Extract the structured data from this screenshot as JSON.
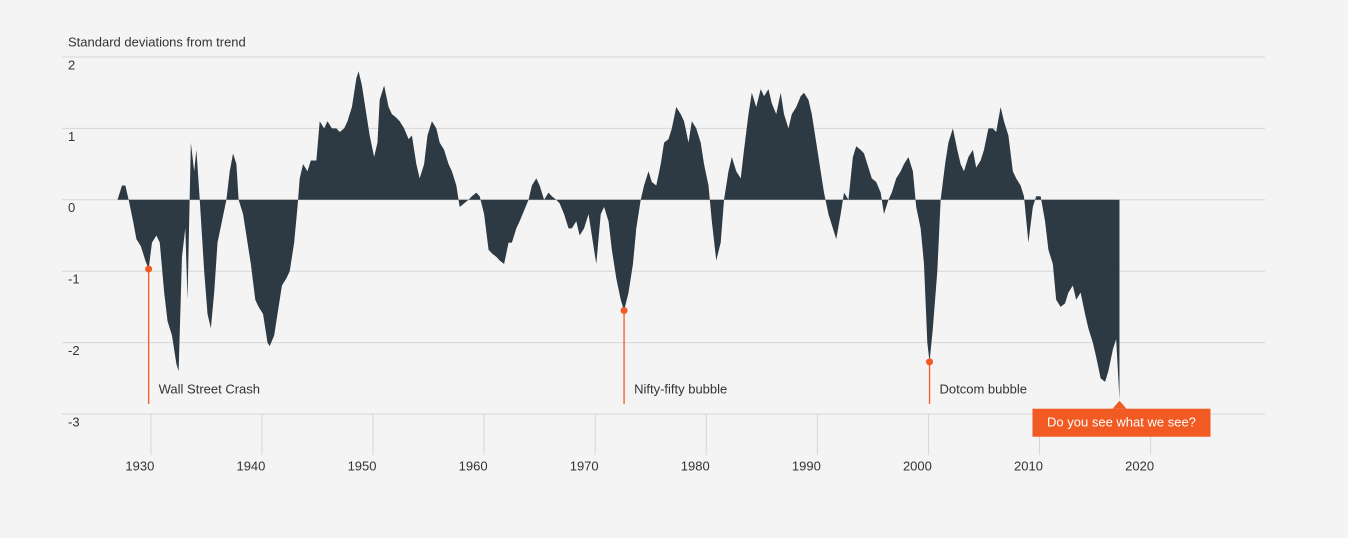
{
  "chart_data": {
    "type": "area",
    "y_label": "Standard deviations from trend",
    "color": "#2e3a43",
    "accent_color": "#f15a22",
    "xlim": [
      1922,
      2030.3
    ],
    "ylim": [
      -3,
      2
    ],
    "xticks": [
      1930,
      1940,
      1950,
      1960,
      1970,
      1980,
      1990,
      2000,
      2010,
      2020
    ],
    "yticks": [
      2,
      1,
      0,
      -1,
      -2,
      -3
    ],
    "grid": true,
    "x": [
      1927.0,
      1927.4,
      1927.7,
      1928.0,
      1928.4,
      1928.7,
      1929.1,
      1929.5,
      1929.8,
      1930.1,
      1930.5,
      1930.8,
      1931.2,
      1931.5,
      1931.9,
      1932.3,
      1932.5,
      1932.8,
      1933.1,
      1933.3,
      1933.6,
      1933.9,
      1934.1,
      1934.4,
      1934.8,
      1935.1,
      1935.4,
      1935.7,
      1936.0,
      1936.4,
      1936.8,
      1937.1,
      1937.4,
      1937.7,
      1937.9,
      1938.3,
      1938.6,
      1939.0,
      1939.4,
      1939.7,
      1940.1,
      1940.5,
      1940.7,
      1941.1,
      1941.4,
      1941.8,
      1942.2,
      1942.5,
      1942.9,
      1943.2,
      1943.4,
      1943.7,
      1944.1,
      1944.4,
      1944.9,
      1945.2,
      1945.6,
      1945.9,
      1946.3,
      1946.7,
      1947.0,
      1947.4,
      1947.7,
      1948.1,
      1948.5,
      1948.7,
      1949.0,
      1949.4,
      1949.7,
      1950.1,
      1950.4,
      1950.6,
      1951.0,
      1951.4,
      1951.7,
      1952.1,
      1952.4,
      1952.8,
      1953.2,
      1953.5,
      1953.9,
      1954.2,
      1954.6,
      1954.9,
      1955.3,
      1955.7,
      1956.0,
      1956.4,
      1956.8,
      1957.1,
      1957.5,
      1957.8,
      1958.2,
      1958.6,
      1958.9,
      1959.3,
      1959.6,
      1960.0,
      1960.4,
      1960.7,
      1961.1,
      1961.4,
      1961.8,
      1962.2,
      1962.5,
      1962.9,
      1963.2,
      1963.6,
      1964.0,
      1964.3,
      1964.7,
      1965.0,
      1965.4,
      1965.8,
      1966.1,
      1966.5,
      1966.8,
      1967.2,
      1967.6,
      1967.9,
      1968.3,
      1968.6,
      1969.0,
      1969.4,
      1969.7,
      1970.1,
      1970.5,
      1970.8,
      1971.2,
      1971.5,
      1971.9,
      1972.3,
      1972.6,
      1973.0,
      1973.4,
      1973.7,
      1974.1,
      1974.4,
      1974.8,
      1975.1,
      1975.5,
      1975.9,
      1976.2,
      1976.6,
      1976.9,
      1977.3,
      1977.7,
      1978.0,
      1978.4,
      1978.7,
      1979.1,
      1979.5,
      1979.8,
      1980.2,
      1980.5,
      1980.9,
      1981.3,
      1981.6,
      1982.0,
      1982.3,
      1982.7,
      1983.1,
      1983.4,
      1983.8,
      1984.1,
      1984.5,
      1984.9,
      1985.2,
      1985.6,
      1985.9,
      1986.3,
      1986.7,
      1987.0,
      1987.4,
      1987.7,
      1988.1,
      1988.5,
      1988.8,
      1989.2,
      1989.5,
      1989.9,
      1990.3,
      1990.6,
      1991.0,
      1991.4,
      1991.7,
      1992.1,
      1992.4,
      1992.8,
      1993.2,
      1993.5,
      1993.9,
      1994.2,
      1994.6,
      1994.9,
      1995.3,
      1995.7,
      1996.0,
      1996.4,
      1996.7,
      1997.1,
      1997.5,
      1997.8,
      1998.2,
      1998.6,
      1998.9,
      1999.3,
      1999.6,
      1999.9,
      2000.1,
      2000.4,
      2000.8,
      2001.1,
      2001.5,
      2001.8,
      2002.2,
      2002.6,
      2002.9,
      2003.2,
      2003.6,
      2004.0,
      2004.3,
      2004.7,
      2005.0,
      2005.4,
      2005.8,
      2006.1,
      2006.5,
      2006.8,
      2007.2,
      2007.6,
      2007.9,
      2008.3,
      2008.6,
      2009.0,
      2009.4,
      2009.7,
      2010.1,
      2010.5,
      2010.8,
      2011.2,
      2011.5,
      2011.9,
      2012.3,
      2012.6,
      2013.0,
      2013.3,
      2013.7,
      2014.1,
      2014.4,
      2014.8,
      2015.1,
      2015.5,
      2015.9,
      2016.2,
      2016.6,
      2016.9,
      2017.2
    ],
    "values": [
      0,
      0.2,
      0.2,
      0,
      -0.3,
      -0.55,
      -0.65,
      -0.85,
      -0.97,
      -0.6,
      -0.5,
      -0.6,
      -1.3,
      -1.7,
      -1.9,
      -2.3,
      -2.4,
      -0.8,
      -0.4,
      -1.4,
      0.8,
      0.4,
      0.7,
      0,
      -1.0,
      -1.6,
      -1.8,
      -1.3,
      -0.6,
      -0.3,
      0,
      0.4,
      0.65,
      0.5,
      0,
      -0.2,
      -0.5,
      -0.9,
      -1.4,
      -1.5,
      -1.6,
      -2.0,
      -2.05,
      -1.9,
      -1.6,
      -1.2,
      -1.1,
      -1.0,
      -0.6,
      -0.1,
      0.3,
      0.5,
      0.4,
      0.55,
      0.55,
      1.1,
      1.0,
      1.1,
      1.0,
      1.0,
      0.95,
      1.0,
      1.1,
      1.3,
      1.7,
      1.8,
      1.6,
      1.2,
      0.9,
      0.6,
      0.8,
      1.4,
      1.6,
      1.3,
      1.2,
      1.15,
      1.1,
      1.0,
      0.85,
      0.9,
      0.5,
      0.3,
      0.5,
      0.9,
      1.1,
      1.0,
      0.8,
      0.7,
      0.5,
      0.4,
      0.2,
      -0.1,
      -0.05,
      0,
      0.05,
      0.1,
      0.05,
      -0.2,
      -0.7,
      -0.75,
      -0.8,
      -0.85,
      -0.9,
      -0.6,
      -0.6,
      -0.4,
      -0.3,
      -0.15,
      0,
      0.2,
      0.3,
      0.2,
      0,
      0.1,
      0.05,
      0,
      -0.05,
      -0.2,
      -0.4,
      -0.4,
      -0.3,
      -0.5,
      -0.4,
      -0.2,
      -0.5,
      -0.9,
      -0.2,
      -0.1,
      -0.3,
      -0.7,
      -1.1,
      -1.4,
      -1.55,
      -1.3,
      -0.9,
      -0.4,
      0,
      0.2,
      0.4,
      0.25,
      0.2,
      0.5,
      0.8,
      0.85,
      1.0,
      1.3,
      1.2,
      1.1,
      0.8,
      1.1,
      1.0,
      0.8,
      0.5,
      0.2,
      -0.3,
      -0.85,
      -0.6,
      0,
      0.4,
      0.6,
      0.4,
      0.3,
      0.7,
      1.2,
      1.5,
      1.3,
      1.55,
      1.45,
      1.55,
      1.35,
      1.2,
      1.5,
      1.2,
      1.0,
      1.2,
      1.3,
      1.45,
      1.5,
      1.4,
      1.2,
      0.8,
      0.4,
      0.1,
      -0.2,
      -0.4,
      -0.55,
      -0.2,
      0.1,
      0,
      0.6,
      0.75,
      0.7,
      0.65,
      0.45,
      0.3,
      0.25,
      0.1,
      -0.2,
      0,
      0.1,
      0.3,
      0.4,
      0.5,
      0.6,
      0.4,
      -0.1,
      -0.4,
      -0.9,
      -2.0,
      -2.27,
      -1.8,
      -1.0,
      0,
      0.5,
      0.8,
      1.0,
      0.7,
      0.5,
      0.4,
      0.6,
      0.7,
      0.45,
      0.55,
      0.7,
      1.0,
      1.0,
      0.95,
      1.3,
      1.1,
      0.9,
      0.4,
      0.3,
      0.2,
      0.05,
      -0.6,
      -0.1,
      0.05,
      0.05,
      -0.3,
      -0.7,
      -0.9,
      -1.4,
      -1.5,
      -1.45,
      -1.3,
      -1.2,
      -1.4,
      -1.3,
      -1.6,
      -1.8,
      -2.0,
      -2.2,
      -2.5,
      -2.55,
      -2.4,
      -2.1,
      -1.95,
      -2.8
    ],
    "annotations": [
      {
        "text": "Wall Street Crash",
        "x": 1929.8,
        "y": -0.97
      },
      {
        "text": "Nifty-fifty bubble",
        "x": 1972.6,
        "y": -1.55
      },
      {
        "text": "Dotcom bubble",
        "x": 2000.1,
        "y": -2.27
      }
    ],
    "callout": {
      "text": "Do you see what we see?",
      "x": 2017.2,
      "y": -2.8
    }
  }
}
